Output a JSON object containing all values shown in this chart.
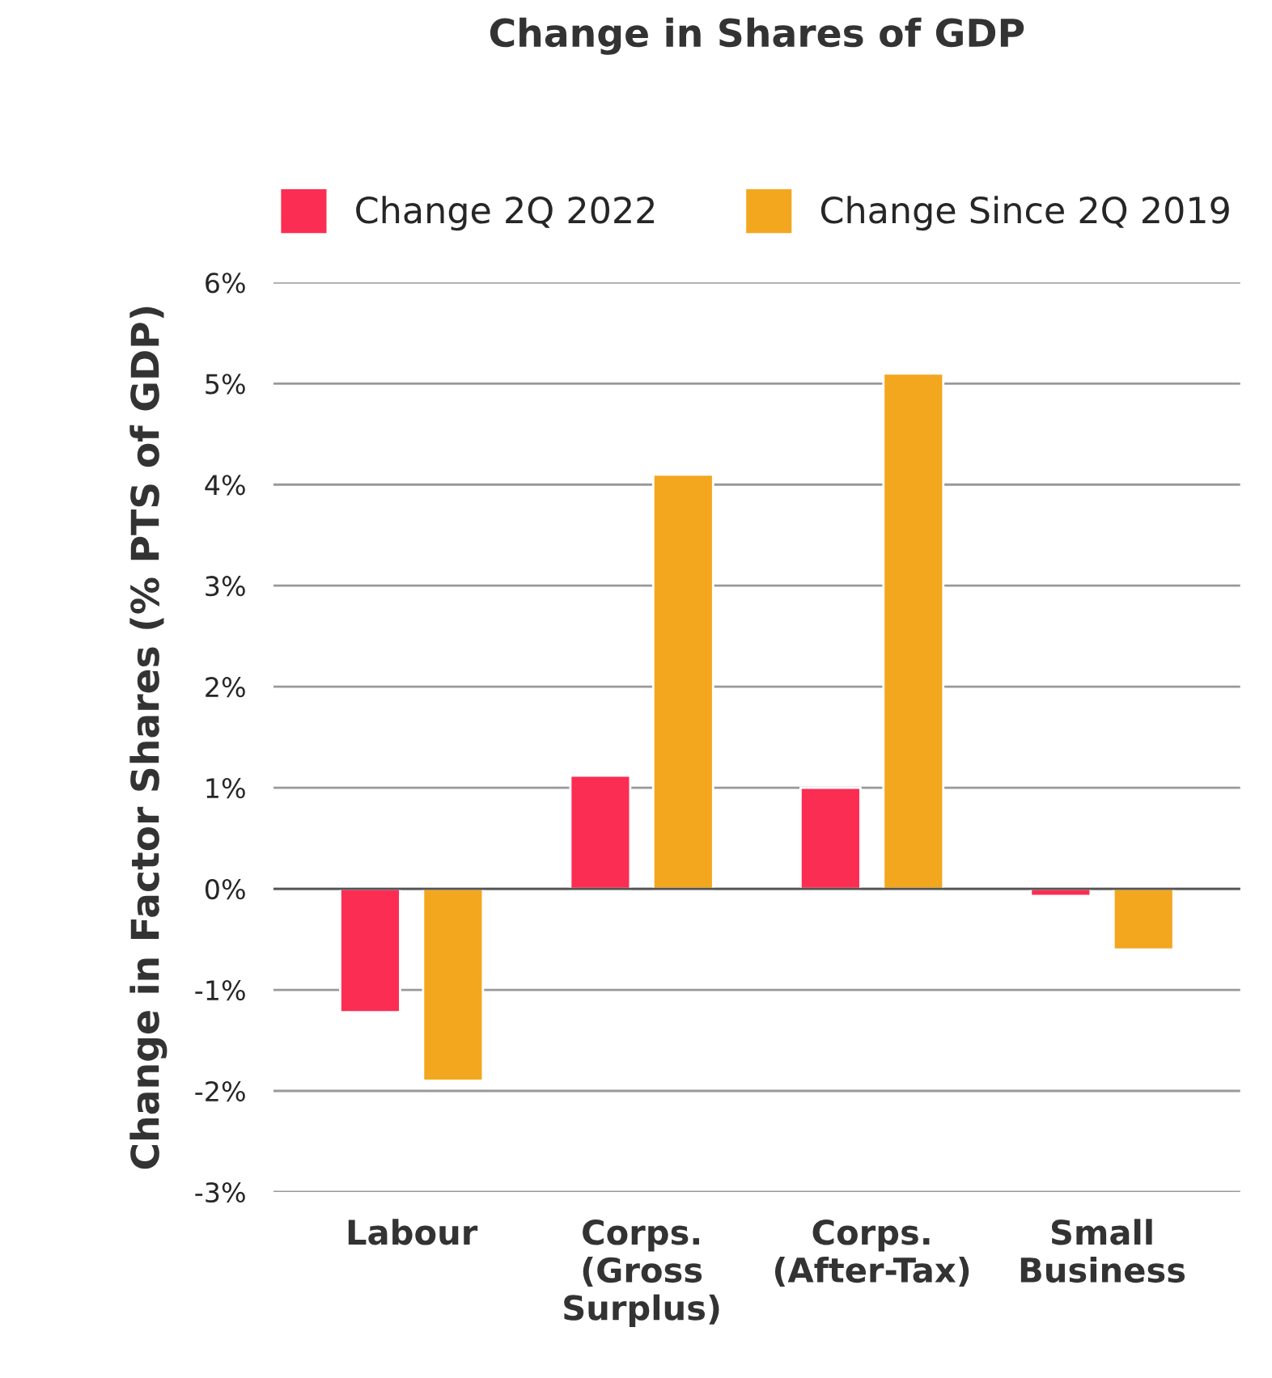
{
  "chart_data": {
    "type": "bar",
    "title": "Change in Shares of GDP",
    "ylabel": "Change in Factor Shares (% PTS of GDP)",
    "categories": [
      "Labour",
      "Corps.\n(Gross\nSurplus)",
      "Corps.\n(After-Tax)",
      "Small\nBusiness"
    ],
    "series": [
      {
        "name": "Change 2Q 2022",
        "color": "#fc2d52",
        "values": [
          -1.22,
          1.12,
          1.0,
          -0.07
        ]
      },
      {
        "name": "Change Since 2Q 2019",
        "color": "#f3a71f",
        "values": [
          -1.9,
          4.1,
          5.1,
          -0.6
        ]
      }
    ],
    "ylim": [
      -3,
      6
    ],
    "yticks": [
      {
        "value": -3,
        "label": "-3%"
      },
      {
        "value": -2,
        "label": "-2%"
      },
      {
        "value": -1,
        "label": "-1%"
      },
      {
        "value": 0,
        "label": "0%"
      },
      {
        "value": 1,
        "label": "1%"
      },
      {
        "value": 2,
        "label": "2%"
      },
      {
        "value": 3,
        "label": "3%"
      },
      {
        "value": 4,
        "label": "4%"
      },
      {
        "value": 5,
        "label": "5%"
      },
      {
        "value": 6,
        "label": "6%"
      }
    ],
    "grid": "y",
    "legend": "top"
  }
}
